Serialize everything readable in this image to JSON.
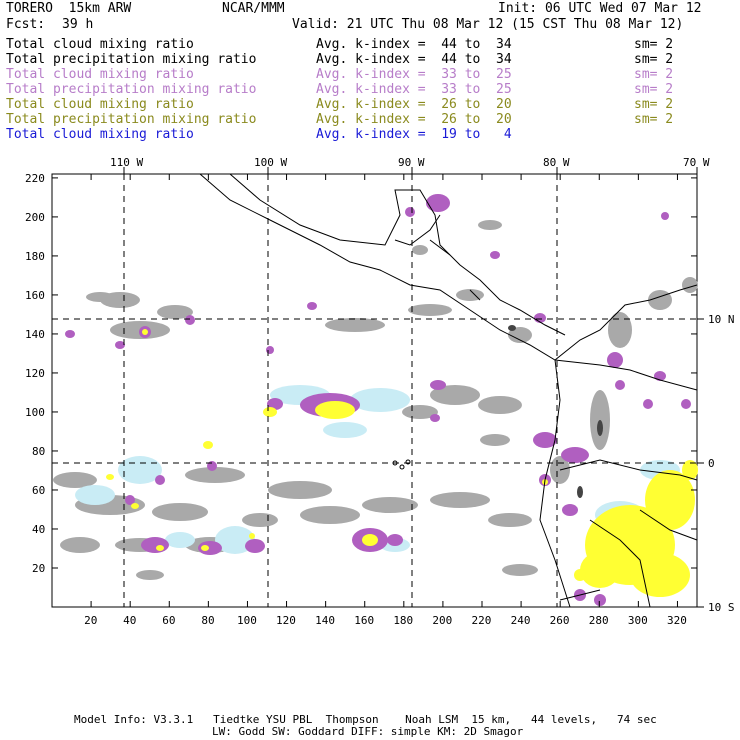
{
  "header": {
    "model": "TORERO  15km ARW",
    "org": "NCAR/MMM",
    "init": "Init: 06 UTC Wed 07 Mar 12",
    "fcst_label": "Fcst:",
    "fcst_value": "39 h",
    "valid": "Valid: 21 UTC Thu 08 Mar 12 (15 CST Thu 08 Mar 12)"
  },
  "legend": [
    {
      "field": "Total cloud mixing ratio",
      "kindex": "Avg. k-index =  44 to  34",
      "sm": "sm= 2",
      "color": "#000000"
    },
    {
      "field": "Total precipitation mixing ratio",
      "kindex": "Avg. k-index =  44 to  34",
      "sm": "sm= 2",
      "color": "#000000"
    },
    {
      "field": "Total cloud mixing ratio",
      "kindex": "Avg. k-index =  33 to  25",
      "sm": "sm= 2",
      "color": "#b77dc9"
    },
    {
      "field": "Total precipitation mixing ratio",
      "kindex": "Avg. k-index =  33 to  25",
      "sm": "sm= 2",
      "color": "#b77dc9"
    },
    {
      "field": "Total cloud mixing ratio",
      "kindex": "Avg. k-index =  26 to  20",
      "sm": "sm= 2",
      "color": "#8a8a1e"
    },
    {
      "field": "Total precipitation mixing ratio",
      "kindex": "Avg. k-index =  26 to  20",
      "sm": "sm= 2",
      "color": "#8a8a1e"
    },
    {
      "field": "Total cloud mixing ratio",
      "kindex": "Avg. k-index =  19 to   4",
      "sm": "",
      "color": "#1a1ad6"
    }
  ],
  "axes": {
    "top_lon": [
      "110 W",
      "100 W",
      "90 W",
      "80 W",
      "70 W"
    ],
    "bottom_ticks": [
      "20",
      "40",
      "60",
      "80",
      "100",
      "120",
      "140",
      "160",
      "180",
      "200",
      "220",
      "240",
      "260",
      "280",
      "300",
      "320"
    ],
    "left_ticks": [
      "20",
      "40",
      "60",
      "80",
      "100",
      "120",
      "140",
      "160",
      "180",
      "200",
      "220"
    ],
    "right_lat": [
      "10 N",
      "0",
      "10 S"
    ]
  },
  "footer": {
    "line1": "Model Info: V3.3.1   Tiedtke YSU PBL  Thompson    Noah LSM  15 km,   44 levels,   74 sec",
    "line2": "LW: Godd SW: Goddard DIFF: simple KM: 2D Smagor"
  },
  "colors": {
    "gray_cloud": "#a9a9a9",
    "dark_gray": "#555555",
    "purple": "#b05fc0",
    "yellow": "#ffff33",
    "light_blue": "#c9ecf5",
    "coast": "#000000"
  }
}
